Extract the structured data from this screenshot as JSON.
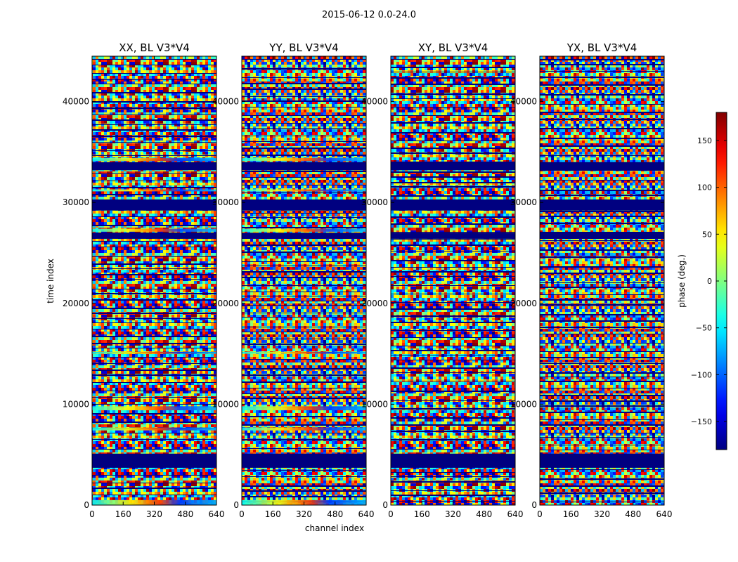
{
  "figure": {
    "suptitle": "2015-06-12 0.0-24.0"
  },
  "chart_data": {
    "type": "heatmap",
    "panels": [
      {
        "title": "XX, BL V3*V4"
      },
      {
        "title": "YY, BL V3*V4"
      },
      {
        "title": "XY, BL V3*V4"
      },
      {
        "title": "YX, BL V3*V4"
      }
    ],
    "xlabel": "channel index",
    "ylabel": "time index",
    "xlim": [
      0,
      640
    ],
    "ylim": [
      0,
      44500
    ],
    "xticks": [
      "0",
      "160",
      "320",
      "480",
      "640"
    ],
    "yticks": [
      "0",
      "10000",
      "20000",
      "30000",
      "40000"
    ],
    "colorbar": {
      "label": "phase (deg.)",
      "range": [
        -180,
        180
      ],
      "ticks": [
        "−150",
        "−100",
        "−50",
        "0",
        "50",
        "100",
        "150"
      ],
      "colormap": "jet"
    },
    "flagged_time_bands": [
      [
        3700,
        5100
      ],
      [
        29200,
        30300
      ],
      [
        33200,
        34000
      ],
      [
        26400,
        27000
      ]
    ]
  }
}
